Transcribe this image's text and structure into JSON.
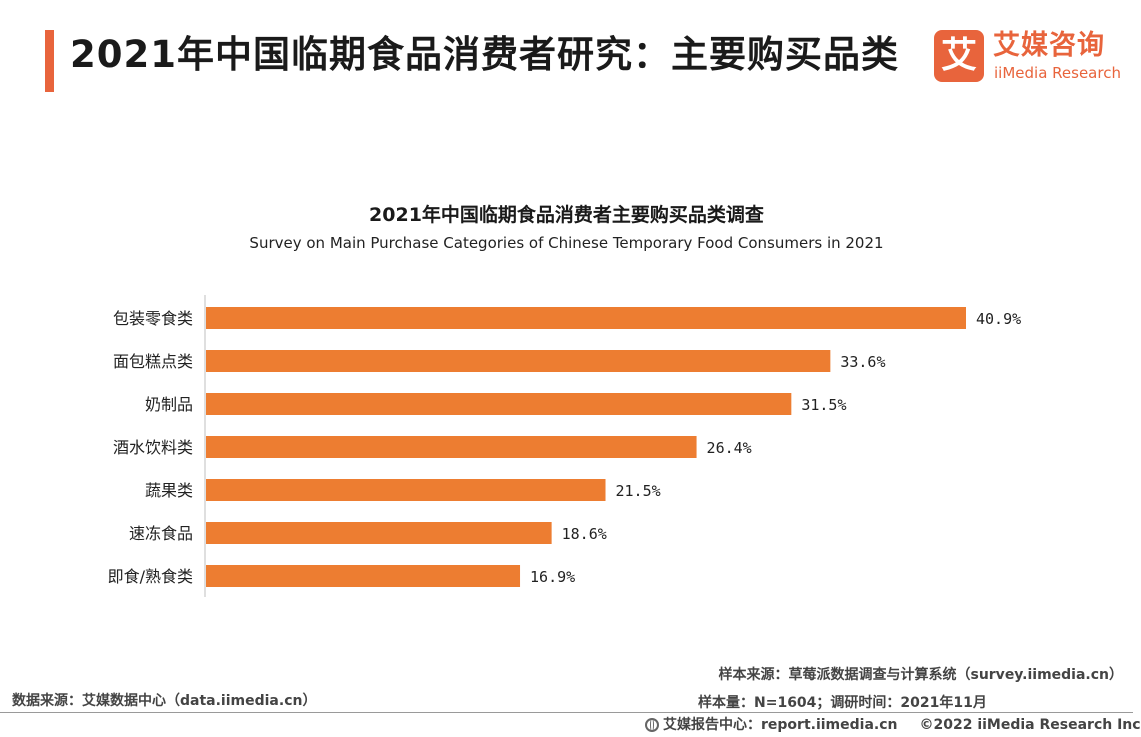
{
  "header": {
    "title": "2021年中国临期食品消费者研究：主要购买品类"
  },
  "logo": {
    "mark": "艾",
    "cn": "艾媒咨询",
    "en": "iiMedia Research",
    "color": "#e8643c"
  },
  "chart_data": {
    "type": "bar",
    "orientation": "horizontal",
    "title": "2021年中国临期食品消费者主要购买品类调查",
    "subtitle": "Survey on Main Purchase Categories of Chinese Temporary Food Consumers in 2021",
    "categories": [
      "包装零食类",
      "面包糕点类",
      "奶制品",
      "酒水饮料类",
      "蔬果类",
      "速冻食品",
      "即食/熟食类"
    ],
    "values": [
      40.9,
      33.6,
      31.5,
      26.4,
      21.5,
      18.6,
      16.9
    ],
    "value_labels": [
      "40.9%",
      "33.6%",
      "31.5%",
      "26.4%",
      "21.5%",
      "18.6%",
      "16.9%"
    ],
    "unit": "%",
    "xlim": [
      0,
      45
    ],
    "bar_color": "#ed7d31",
    "grid": false,
    "legend": "none"
  },
  "sources": {
    "data_source": "数据来源：艾媒数据中心（data.iimedia.cn）",
    "sample_source": "样本来源：草莓派数据调查与计算系统（survey.iimedia.cn）",
    "sample_info": "样本量：N=1604；调研时间：2021年11月"
  },
  "footer": {
    "report_center": "艾媒报告中心：report.iimedia.cn",
    "copyright": "©2022  iiMedia Research  Inc"
  }
}
